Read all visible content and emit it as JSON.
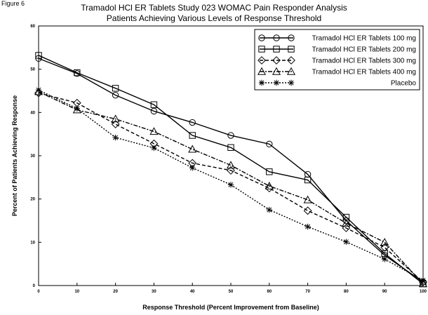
{
  "figure_label": "Figure 6",
  "chart_data": {
    "type": "line",
    "title": "Tramadol HCl ER Tablets Study 023 WOMAC Pain Responder Analysis",
    "subtitle": "Patients Achieving Various Levels of Response Threshold",
    "xlabel": "Response Threshold (Percent Improvement from Baseline)",
    "ylabel": "Percent of Patients Achieving Response",
    "xlim": [
      0,
      100
    ],
    "ylim": [
      0,
      60
    ],
    "x_ticks": [
      0,
      10,
      20,
      30,
      40,
      50,
      60,
      70,
      80,
      90,
      100
    ],
    "y_ticks": [
      0,
      10,
      20,
      30,
      40,
      50,
      60
    ],
    "legend_position": "top-right",
    "x": [
      0,
      10,
      20,
      30,
      40,
      50,
      60,
      70,
      80,
      90,
      100
    ],
    "series": [
      {
        "name": "Tramadol HCl ER Tablets 100 mg",
        "marker": "circle",
        "dash": "solid",
        "values": [
          52.5,
          49.0,
          44.0,
          40.3,
          37.7,
          34.7,
          32.7,
          25.7,
          15.0,
          7.0,
          0.8
        ]
      },
      {
        "name": "Tramadol HCl ER Tablets 200 mg",
        "marker": "square",
        "dash": "solid",
        "values": [
          53.2,
          49.2,
          45.6,
          41.8,
          34.7,
          31.9,
          26.3,
          24.4,
          15.8,
          7.4,
          0.4
        ]
      },
      {
        "name": "Tramadol HCl ER Tablets 300 mg",
        "marker": "diamond",
        "dash": "dashed",
        "values": [
          44.5,
          42.2,
          37.3,
          32.8,
          28.3,
          26.6,
          22.5,
          17.3,
          13.3,
          8.8,
          0.8
        ]
      },
      {
        "name": "Tramadol HCl ER Tablets 400 mg",
        "marker": "triangle",
        "dash": "dashdot",
        "values": [
          44.8,
          40.6,
          38.5,
          35.6,
          31.5,
          27.8,
          23.0,
          19.8,
          14.4,
          10.0,
          0.4
        ]
      },
      {
        "name": "Placebo",
        "marker": "star",
        "dash": "dotted",
        "values": [
          45.2,
          40.9,
          34.2,
          31.8,
          27.2,
          23.3,
          17.5,
          13.6,
          10.1,
          6.1,
          1.2
        ]
      }
    ]
  }
}
